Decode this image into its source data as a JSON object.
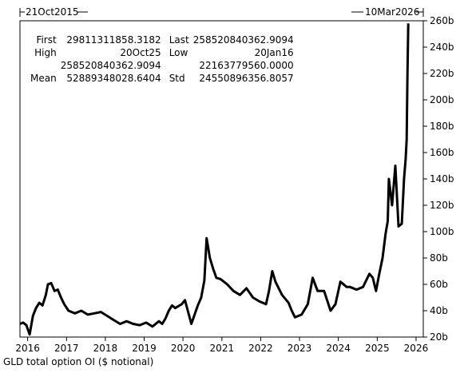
{
  "header": {
    "start_date": "21Oct2015",
    "end_date": "10Mar2026"
  },
  "stats": {
    "first_label": "First",
    "first_value": "29811311858.3182",
    "last_label": "Last",
    "last_value": "258520840362.9094",
    "high_label": "High",
    "high_date": "20Oct25",
    "low_label": "Low",
    "low_date": "20Jan16",
    "high_value": "258520840362.9094",
    "low_value": "22163779560.0000",
    "mean_label": "Mean",
    "mean_value": "52889348028.6404",
    "std_label": "Std",
    "std_value": "24550896356.8057"
  },
  "caption": "GLD total option OI ($ notional)",
  "chart_data": {
    "type": "line",
    "title": "",
    "xlabel": "",
    "ylabel": "",
    "x_range": [
      "2015-10-21",
      "2026-03-10"
    ],
    "ylim": [
      20,
      260
    ],
    "y_unit": "b",
    "y_ticks": [
      20,
      40,
      60,
      80,
      100,
      120,
      140,
      160,
      180,
      200,
      220,
      240,
      260
    ],
    "y_tick_labels": [
      "20b",
      "40b",
      "60b",
      "80b",
      "100b",
      "120b",
      "140b",
      "160b",
      "180b",
      "200b",
      "220b",
      "240b",
      "260b"
    ],
    "x_tick_labels": [
      "2016",
      "2017",
      "2018",
      "2019",
      "2020",
      "2021",
      "2022",
      "2023",
      "2024",
      "2025",
      "2026"
    ],
    "x_tick_dates": [
      "2016-01-01",
      "2017-01-01",
      "2018-01-01",
      "2019-01-01",
      "2020-01-01",
      "2021-01-01",
      "2022-01-01",
      "2023-01-01",
      "2024-01-01",
      "2025-01-01",
      "2026-01-01"
    ],
    "grid": false,
    "legend": "none",
    "line_color": "#000000",
    "series": [
      {
        "x": [
          "2015-10-21",
          "2015-11-20",
          "2015-12-20",
          "2016-01-20",
          "2016-02-20",
          "2016-03-20",
          "2016-04-20",
          "2016-05-20",
          "2016-06-20",
          "2016-07-10",
          "2016-08-10",
          "2016-09-10",
          "2016-10-10",
          "2016-11-10",
          "2016-12-10",
          "2017-01-20",
          "2017-03-20",
          "2017-05-20",
          "2017-07-20",
          "2017-09-20",
          "2017-11-20",
          "2018-01-20",
          "2018-03-20",
          "2018-05-20",
          "2018-07-20",
          "2018-09-20",
          "2018-11-20",
          "2019-01-20",
          "2019-03-20",
          "2019-05-20",
          "2019-06-20",
          "2019-07-20",
          "2019-08-20",
          "2019-09-20",
          "2019-10-20",
          "2019-12-20",
          "2020-01-20",
          "2020-03-20",
          "2020-05-20",
          "2020-06-20",
          "2020-07-20",
          "2020-08-10",
          "2020-09-10",
          "2020-10-10",
          "2020-11-10",
          "2020-12-20",
          "2021-02-20",
          "2021-04-20",
          "2021-06-20",
          "2021-08-20",
          "2021-10-20",
          "2021-12-20",
          "2022-02-20",
          "2022-03-20",
          "2022-04-20",
          "2022-05-20",
          "2022-07-20",
          "2022-09-20",
          "2022-10-20",
          "2022-11-20",
          "2023-01-20",
          "2023-03-20",
          "2023-05-05",
          "2023-06-20",
          "2023-08-20",
          "2023-10-20",
          "2023-12-05",
          "2024-01-20",
          "2024-03-20",
          "2024-04-20",
          "2024-06-20",
          "2024-08-20",
          "2024-10-20",
          "2024-11-20",
          "2024-12-20",
          "2025-01-20",
          "2025-02-20",
          "2025-03-20",
          "2025-04-10",
          "2025-04-20",
          "2025-05-20",
          "2025-06-20",
          "2025-07-20",
          "2025-08-20",
          "2025-09-10",
          "2025-09-25",
          "2025-10-05",
          "2025-10-12",
          "2025-10-20"
        ],
        "y": [
          30,
          31,
          29,
          22,
          36,
          42,
          46,
          44,
          52,
          60,
          61,
          55,
          56,
          50,
          45,
          40,
          38,
          40,
          37,
          38,
          39,
          36,
          33,
          30,
          32,
          30,
          29,
          31,
          28,
          32,
          30,
          34,
          40,
          44,
          42,
          45,
          48,
          30,
          44,
          50,
          63,
          95,
          80,
          72,
          65,
          64,
          60,
          55,
          52,
          57,
          50,
          47,
          45,
          55,
          70,
          62,
          52,
          46,
          40,
          35,
          37,
          45,
          65,
          55,
          55,
          40,
          45,
          62,
          58,
          58,
          56,
          58,
          68,
          65,
          55,
          68,
          80,
          98,
          108,
          140,
          120,
          150,
          104,
          106,
          140,
          155,
          170,
          220,
          258
        ]
      }
    ]
  }
}
